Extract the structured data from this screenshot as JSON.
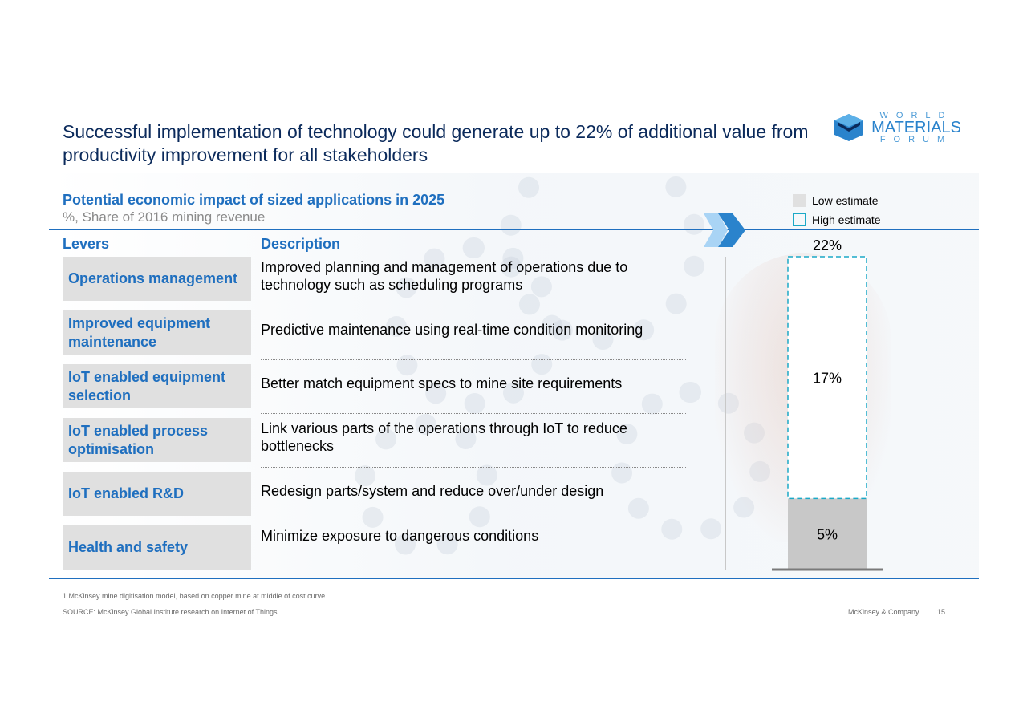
{
  "title": "Successful implementation of technology could generate up to 22% of additional value from productivity improvement for all stakeholders",
  "logo": {
    "line1": "WORLD",
    "line2": "MATERIALS",
    "line3": "FORUM",
    "color": "#2a83cc"
  },
  "subtitle": "Potential economic impact of sized applications in 2025",
  "subtitle_unit": "%, Share of 2016 mining revenue",
  "legend": {
    "low": "Low estimate",
    "high": "High estimate"
  },
  "columns": {
    "levers": "Levers",
    "description": "Description"
  },
  "rows": [
    {
      "lever": "Operations management",
      "description": "Improved planning and management of operations due to technology such as scheduling programs"
    },
    {
      "lever": "Improved equipment maintenance",
      "description": "Predictive maintenance using real-time condition monitoring"
    },
    {
      "lever": "IoT enabled equipment selection",
      "description": "Better match equipment specs to mine site requirements"
    },
    {
      "lever": "IoT enabled process optimisation",
      "description": "Link various parts of the operations through IoT to reduce bottlenecks"
    },
    {
      "lever": "IoT enabled R&D",
      "description": "Redesign parts/system and reduce over/under design"
    },
    {
      "lever": "Health and safety",
      "description": "Minimize exposure to dangerous conditions"
    }
  ],
  "chart_data": {
    "type": "bar",
    "categories": [
      ""
    ],
    "series": [
      {
        "name": "Low estimate",
        "values": [
          5
        ],
        "label": "5%"
      },
      {
        "name": "High estimate",
        "values": [
          17
        ],
        "label": "17%"
      }
    ],
    "total": 22,
    "total_label": "22%",
    "stacked": true,
    "ylim": [
      0,
      22
    ],
    "colors": {
      "low": "#c8c8c8",
      "high_border": "#1ba9c7"
    }
  },
  "footnote": "1 McKinsey mine digitisation model, based on copper mine at middle of cost curve",
  "source": "SOURCE: McKinsey Global Institute research on Internet of Things",
  "brand": "McKinsey & Company",
  "page": "15"
}
